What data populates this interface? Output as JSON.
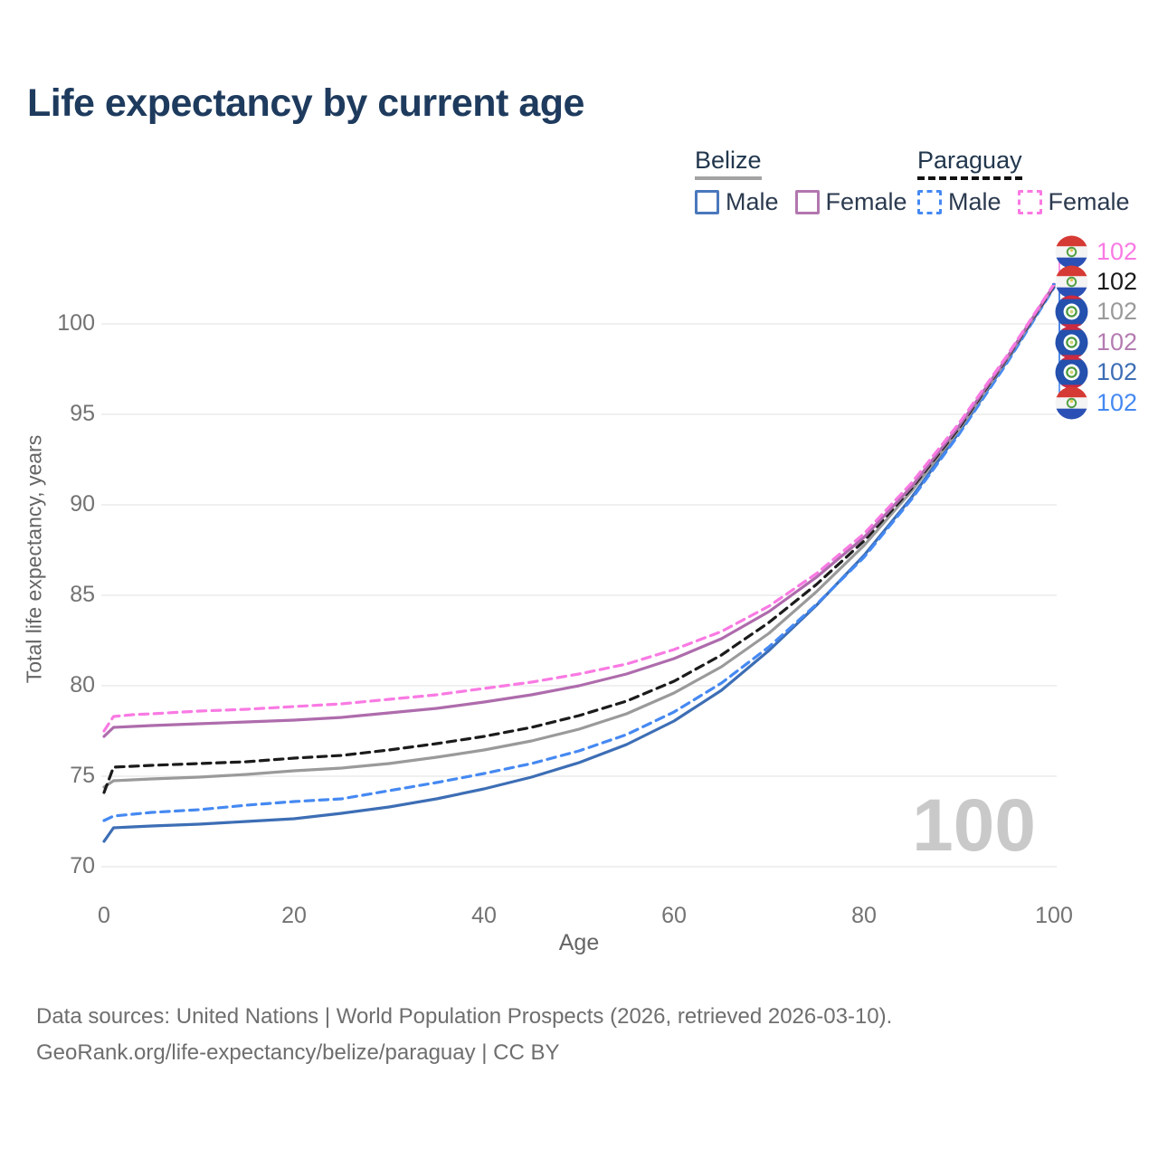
{
  "title": "Life expectancy by current age",
  "legend": {
    "groups": [
      {
        "country": "Belize",
        "underline_color": "#a3a3a3",
        "underline_style": "solid",
        "items": [
          {
            "label": "Male",
            "color": "#4a78bc",
            "box_style": "solid"
          },
          {
            "label": "Female",
            "color": "#b277ae",
            "box_style": "solid"
          }
        ]
      },
      {
        "country": "Paraguay",
        "underline_color": "#111111",
        "underline_style": "dashed",
        "items": [
          {
            "label": "Male",
            "color": "#4589f2",
            "box_style": "dashed"
          },
          {
            "label": "Female",
            "color": "#fa78e2",
            "box_style": "dashed"
          }
        ]
      }
    ]
  },
  "chart_data": {
    "type": "line",
    "title": "Life expectancy by current age",
    "xlabel": "Age",
    "ylabel": "Total life expectancy, years",
    "x_ticks": [
      0,
      20,
      40,
      60,
      80,
      100
    ],
    "y_ticks": [
      70,
      75,
      80,
      85,
      90,
      95,
      100
    ],
    "xlim": [
      0,
      100
    ],
    "ylim": [
      69.5,
      102.5
    ],
    "grid_color": "#ececec",
    "ages": [
      0,
      1,
      3,
      5,
      10,
      15,
      20,
      25,
      30,
      35,
      40,
      45,
      50,
      55,
      60,
      65,
      70,
      75,
      80,
      85,
      90,
      95,
      100
    ],
    "series": [
      {
        "name": "Belize — Male",
        "country": "belize",
        "sex": "male",
        "color": "#3d6eb5",
        "dashed": false,
        "values": [
          71.4,
          72.15,
          72.2,
          72.25,
          72.35,
          72.5,
          72.65,
          72.95,
          73.3,
          73.75,
          74.3,
          74.95,
          75.75,
          76.75,
          78.05,
          79.75,
          81.95,
          84.45,
          87.2,
          90.4,
          94.0,
          97.9,
          102.05
        ]
      },
      {
        "name": "Paraguay — Male",
        "country": "paraguay",
        "sex": "male",
        "color": "#4589f2",
        "dashed": true,
        "values": [
          72.55,
          72.8,
          72.9,
          73.0,
          73.15,
          73.4,
          73.6,
          73.75,
          74.2,
          74.65,
          75.15,
          75.7,
          76.4,
          77.3,
          78.55,
          80.15,
          82.15,
          84.5,
          87.1,
          90.3,
          93.9,
          97.8,
          102.0
        ]
      },
      {
        "name": "Belize — Both sexes",
        "country": "belize",
        "sex": "all",
        "color": "#9a9a9a",
        "dashed": false,
        "values": [
          74.4,
          74.75,
          74.8,
          74.85,
          74.95,
          75.1,
          75.3,
          75.45,
          75.7,
          76.05,
          76.45,
          76.95,
          77.6,
          78.45,
          79.6,
          81.05,
          82.9,
          85.2,
          87.75,
          90.75,
          94.15,
          98.0,
          102.1
        ]
      },
      {
        "name": "Paraguay — Both sexes",
        "country": "paraguay",
        "sex": "all",
        "color": "#1b1b1b",
        "dashed": true,
        "values": [
          74.1,
          75.5,
          75.55,
          75.6,
          75.7,
          75.8,
          76.0,
          76.15,
          76.45,
          76.8,
          77.2,
          77.7,
          78.35,
          79.15,
          80.25,
          81.7,
          83.5,
          85.6,
          88.0,
          90.9,
          94.25,
          98.05,
          102.1
        ]
      },
      {
        "name": "Belize — Female",
        "country": "belize",
        "sex": "female",
        "color": "#ae6cac",
        "dashed": false,
        "values": [
          77.2,
          77.7,
          77.75,
          77.8,
          77.9,
          78.0,
          78.1,
          78.25,
          78.5,
          78.75,
          79.1,
          79.5,
          80.0,
          80.65,
          81.5,
          82.6,
          84.1,
          86.0,
          88.2,
          91.0,
          94.35,
          98.1,
          102.15
        ]
      },
      {
        "name": "Paraguay — Female",
        "country": "paraguay",
        "sex": "female",
        "color": "#f97ae3",
        "dashed": true,
        "values": [
          77.5,
          78.3,
          78.4,
          78.45,
          78.6,
          78.7,
          78.85,
          79.0,
          79.25,
          79.5,
          79.85,
          80.2,
          80.65,
          81.2,
          82.0,
          83.0,
          84.4,
          86.2,
          88.4,
          91.2,
          94.5,
          98.2,
          102.2
        ]
      }
    ],
    "end_labels": [
      {
        "text": "102",
        "color": "#f97ae3",
        "flag": "paraguay"
      },
      {
        "text": "102",
        "color": "#1b1b1b",
        "flag": "paraguay"
      },
      {
        "text": "102",
        "color": "#9a9a9a",
        "flag": "belize"
      },
      {
        "text": "102",
        "color": "#b47cb1",
        "flag": "belize"
      },
      {
        "text": "102",
        "color": "#3d6eb5",
        "flag": "belize"
      },
      {
        "text": "102",
        "color": "#4589f2",
        "flag": "paraguay"
      }
    ],
    "watermark": "100",
    "flag_colors": {
      "paraguay": {
        "top": "#d63a34",
        "mid": "#f4f4f4",
        "bottom": "#2b50b5",
        "emblem": "#53a044",
        "emblem_center": "#e0c94f"
      },
      "belize": {
        "field": "#2450ae",
        "stripe": "#d12a3e",
        "disc": "#ffffff",
        "ring": "#4c9a3f",
        "center": "#cfd37a"
      }
    }
  },
  "footer": {
    "line1": "Data sources: United Nations | World Population Prospects (2026, retrieved 2026-03-10).",
    "line2": "GeoRank.org/life-expectancy/belize/paraguay | CC BY"
  }
}
